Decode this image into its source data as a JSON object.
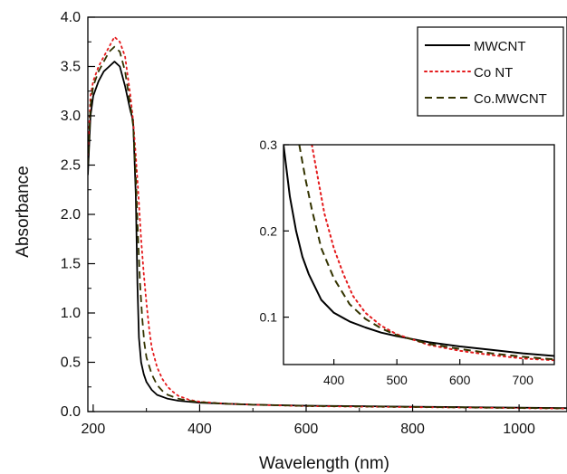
{
  "chart_data": [
    {
      "type": "line",
      "role": "main",
      "xlabel": "Wavelength (nm)",
      "ylabel": "Absorbance",
      "xlim": [
        190,
        1090
      ],
      "ylim": [
        0,
        4.0
      ],
      "x_ticks": [
        200,
        400,
        600,
        800,
        1000
      ],
      "y_ticks": [
        0.0,
        0.5,
        1.0,
        1.5,
        2.0,
        2.5,
        3.0,
        3.5,
        4.0
      ],
      "x_tick_labels": [
        "200",
        "400",
        "600",
        "800",
        "1000"
      ],
      "y_tick_labels": [
        "0.0",
        "0.5",
        "1.0",
        "1.5",
        "2.0",
        "2.5",
        "3.0",
        "3.5",
        "4.0"
      ],
      "grid": false,
      "legend_position": "top-right",
      "series": [
        {
          "name": "MWCNT",
          "color": "#000000",
          "style": "solid",
          "x": [
            190,
            195,
            200,
            210,
            220,
            230,
            240,
            250,
            260,
            270,
            275,
            280,
            283,
            286,
            290,
            295,
            300,
            310,
            320,
            340,
            360,
            380,
            400,
            450,
            500,
            600,
            700,
            800,
            900,
            1000,
            1090
          ],
          "y": [
            2.4,
            3.0,
            3.2,
            3.35,
            3.45,
            3.5,
            3.55,
            3.5,
            3.3,
            3.05,
            2.95,
            2.2,
            1.3,
            0.75,
            0.5,
            0.38,
            0.3,
            0.22,
            0.17,
            0.13,
            0.11,
            0.1,
            0.09,
            0.08,
            0.07,
            0.06,
            0.055,
            0.05,
            0.045,
            0.04,
            0.035
          ]
        },
        {
          "name": "Co NT",
          "color": "#e41a1c",
          "style": "dotted",
          "x": [
            190,
            195,
            200,
            210,
            220,
            230,
            240,
            250,
            260,
            270,
            275,
            280,
            285,
            290,
            295,
            300,
            305,
            310,
            320,
            330,
            340,
            350,
            360,
            380,
            400,
            450,
            500,
            600,
            700,
            800,
            900,
            1000,
            1090
          ],
          "y": [
            2.6,
            3.2,
            3.35,
            3.5,
            3.6,
            3.7,
            3.8,
            3.75,
            3.6,
            3.2,
            2.95,
            2.6,
            2.2,
            1.75,
            1.4,
            1.1,
            0.85,
            0.65,
            0.45,
            0.33,
            0.25,
            0.2,
            0.16,
            0.12,
            0.1,
            0.08,
            0.07,
            0.055,
            0.05,
            0.045,
            0.04,
            0.035,
            0.03
          ]
        },
        {
          "name": "Co.MWCNT",
          "color": "#333300",
          "style": "dashed",
          "x": [
            190,
            195,
            200,
            210,
            220,
            230,
            240,
            250,
            260,
            270,
            275,
            280,
            284,
            288,
            292,
            296,
            300,
            310,
            320,
            330,
            340,
            360,
            380,
            400,
            450,
            500,
            600,
            700,
            800,
            900,
            1000,
            1090
          ],
          "y": [
            2.5,
            3.1,
            3.3,
            3.45,
            3.55,
            3.65,
            3.7,
            3.65,
            3.45,
            3.1,
            2.9,
            2.4,
            1.8,
            1.3,
            0.95,
            0.7,
            0.55,
            0.38,
            0.27,
            0.21,
            0.17,
            0.13,
            0.11,
            0.095,
            0.08,
            0.07,
            0.058,
            0.052,
            0.047,
            0.042,
            0.037,
            0.033
          ]
        }
      ]
    },
    {
      "type": "line",
      "role": "inset",
      "xlim": [
        320,
        750
      ],
      "ylim": [
        0.045,
        0.3
      ],
      "x_ticks": [
        400,
        500,
        600,
        700
      ],
      "y_ticks": [
        0.1,
        0.2,
        0.3
      ],
      "x_tick_labels": [
        "400",
        "500",
        "600",
        "700"
      ],
      "y_tick_labels": [
        "0.1",
        "0.2",
        "0.3"
      ],
      "series": [
        {
          "name": "MWCNT",
          "color": "#000000",
          "style": "solid",
          "x": [
            320,
            330,
            340,
            350,
            360,
            380,
            400,
            425,
            450,
            475,
            500,
            550,
            600,
            650,
            700,
            750
          ],
          "y": [
            0.3,
            0.24,
            0.2,
            0.17,
            0.15,
            0.12,
            0.105,
            0.095,
            0.088,
            0.082,
            0.078,
            0.071,
            0.066,
            0.062,
            0.058,
            0.055
          ]
        },
        {
          "name": "Co NT",
          "color": "#e41a1c",
          "style": "dotted",
          "x": [
            365,
            375,
            385,
            400,
            415,
            430,
            450,
            475,
            500,
            550,
            600,
            650,
            700,
            750
          ],
          "y": [
            0.3,
            0.26,
            0.22,
            0.18,
            0.15,
            0.125,
            0.105,
            0.09,
            0.08,
            0.068,
            0.061,
            0.056,
            0.052,
            0.05
          ]
        },
        {
          "name": "Co.MWCNT",
          "color": "#333300",
          "style": "dashed",
          "x": [
            345,
            355,
            365,
            380,
            400,
            425,
            450,
            475,
            500,
            550,
            600,
            650,
            700,
            750
          ],
          "y": [
            0.3,
            0.26,
            0.225,
            0.18,
            0.145,
            0.115,
            0.098,
            0.087,
            0.079,
            0.069,
            0.063,
            0.058,
            0.054,
            0.051
          ]
        }
      ]
    }
  ]
}
